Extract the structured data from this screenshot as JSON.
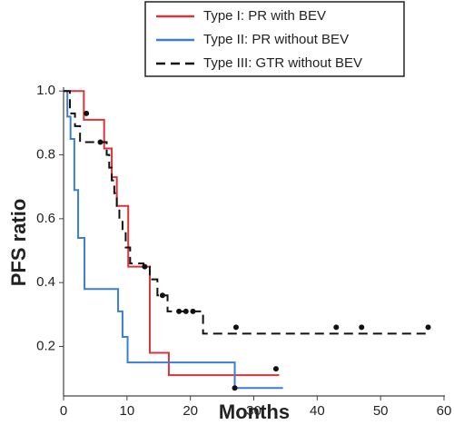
{
  "chart_data": {
    "type": "survival",
    "x_label": "Months",
    "y_label": "PFS ratio",
    "xlim": [
      0,
      60
    ],
    "ylim": [
      0.045,
      1.012
    ],
    "xticks": [
      0,
      10,
      20,
      30,
      40,
      50,
      60
    ],
    "yticks": [
      0.2,
      0.4,
      0.6,
      0.8,
      {
        "value": 1,
        "label": "1.0"
      }
    ],
    "series": [
      {
        "name": "Type I: PR with BEV",
        "color": "#d9343a",
        "dashed": false,
        "x": [
          0,
          3.2,
          6.4,
          7.6,
          8.4,
          10.2,
          13.6,
          16.6,
          34
        ],
        "values": [
          1,
          0.91,
          0.82,
          0.73,
          0.64,
          0.45,
          0.18,
          0.11,
          0.11
        ],
        "censor_x": [
          33.5
        ],
        "censor_y": [
          0.13
        ]
      },
      {
        "name": "Type II: PR without BEV",
        "color": "#3a7fd0",
        "dashed": false,
        "x": [
          0,
          0.6,
          1.1,
          1.7,
          2.3,
          3.3,
          8.6,
          9.3,
          10.1,
          27,
          34.6
        ],
        "values": [
          1,
          0.92,
          0.85,
          0.69,
          0.54,
          0.38,
          0.31,
          0.23,
          0.15,
          0.07,
          0.07
        ],
        "censor_x": [
          27
        ],
        "censor_y": [
          0.07
        ]
      },
      {
        "name": "Type III: GTR without BEV",
        "color": "#111111",
        "dashed": true,
        "x": [
          0,
          1,
          1.8,
          2.6,
          6.8,
          7.2,
          7.6,
          8,
          8.4,
          8.8,
          9.3,
          9.8,
          10.5,
          12.6,
          13.6,
          14.8,
          16.4,
          22,
          57.5
        ],
        "values": [
          1,
          0.93,
          0.89,
          0.84,
          0.8,
          0.76,
          0.72,
          0.68,
          0.64,
          0.6,
          0.56,
          0.51,
          0.46,
          0.45,
          0.41,
          0.36,
          0.31,
          0.24,
          0.24
        ],
        "censor_x": [
          3.6,
          5.8,
          12.8,
          15.6,
          18.2,
          19.3,
          20.4,
          27.2,
          43,
          47,
          57.5
        ],
        "censor_y": [
          0.93,
          0.84,
          0.45,
          0.36,
          0.31,
          0.31,
          0.31,
          0.26,
          0.26,
          0.26,
          0.26
        ]
      }
    ]
  }
}
